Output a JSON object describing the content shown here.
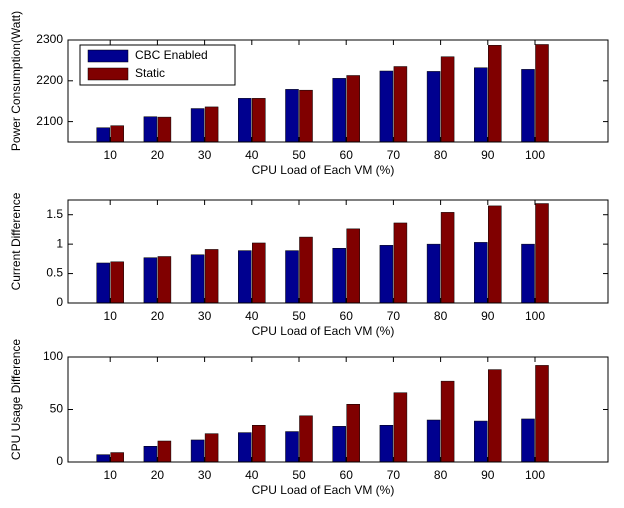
{
  "chart_data": [
    {
      "type": "bar",
      "ylabel": "Power Consumption(Watt)",
      "xlabel": "CPU Load of Each VM (%)",
      "categories": [
        "10",
        "20",
        "30",
        "40",
        "50",
        "60",
        "70",
        "80",
        "90",
        "100"
      ],
      "series": [
        {
          "name": "CBC Enabled",
          "color": "#00008f",
          "values": [
            2085,
            2112,
            2132,
            2157,
            2179,
            2206,
            2224,
            2223,
            2232,
            2228
          ]
        },
        {
          "name": "Static",
          "color": "#800000",
          "values": [
            2090,
            2111,
            2136,
            2157,
            2177,
            2213,
            2235,
            2259,
            2287,
            2289
          ]
        }
      ],
      "ylim": [
        2050,
        2300
      ],
      "yticks": [
        2100,
        2200,
        2300
      ],
      "legend": "upper left"
    },
    {
      "type": "bar",
      "ylabel": "Current Difference",
      "xlabel": "CPU Load of Each VM (%)",
      "categories": [
        "10",
        "20",
        "30",
        "40",
        "50",
        "60",
        "70",
        "80",
        "90",
        "100"
      ],
      "series": [
        {
          "color": "#00008f",
          "values": [
            0.68,
            0.77,
            0.82,
            0.89,
            0.89,
            0.93,
            0.98,
            1.0,
            1.03,
            1.0
          ]
        },
        {
          "color": "#800000",
          "values": [
            0.7,
            0.79,
            0.91,
            1.02,
            1.12,
            1.26,
            1.36,
            1.54,
            1.65,
            1.69
          ]
        }
      ],
      "ylim": [
        0,
        1.75
      ],
      "yticks": [
        0,
        0.5,
        1,
        1.5
      ]
    },
    {
      "type": "bar",
      "ylabel": "CPU Usage Difference",
      "xlabel": "CPU Load of Each VM (%)",
      "categories": [
        "10",
        "20",
        "30",
        "40",
        "50",
        "60",
        "70",
        "80",
        "90",
        "100"
      ],
      "series": [
        {
          "color": "#00008f",
          "values": [
            7,
            15,
            21,
            28,
            29,
            34,
            35,
            40,
            39,
            41
          ]
        },
        {
          "color": "#800000",
          "values": [
            9,
            20,
            27,
            35,
            44,
            55,
            66,
            77,
            88,
            92
          ]
        }
      ],
      "ylim": [
        0,
        100
      ],
      "yticks": [
        0,
        50,
        100
      ]
    }
  ]
}
